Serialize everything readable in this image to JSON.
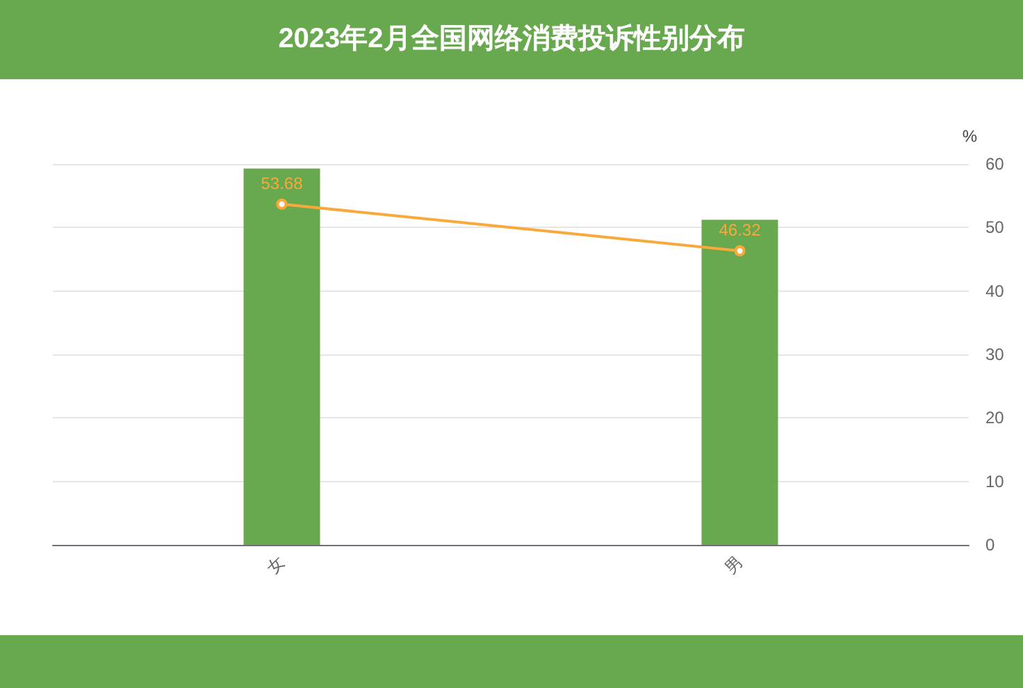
{
  "chart_data": {
    "type": "bar",
    "title": "2023年2月全国网络消费投诉性别分布",
    "ylabel": "%",
    "categories": [
      "女",
      "男"
    ],
    "series": [
      {
        "color": "#68a84e",
        "values": [
          59.3,
          51.2
        ]
      },
      {
        "type": "line",
        "color": "#f8a93c",
        "values": [
          53.68,
          46.32
        ],
        "value_labels": [
          "53.68",
          "46.32"
        ]
      }
    ],
    "ylim": [
      0,
      60
    ],
    "yticks": [
      0,
      10,
      20,
      30,
      40,
      50,
      60
    ],
    "grid": "y",
    "marker": "circle"
  }
}
